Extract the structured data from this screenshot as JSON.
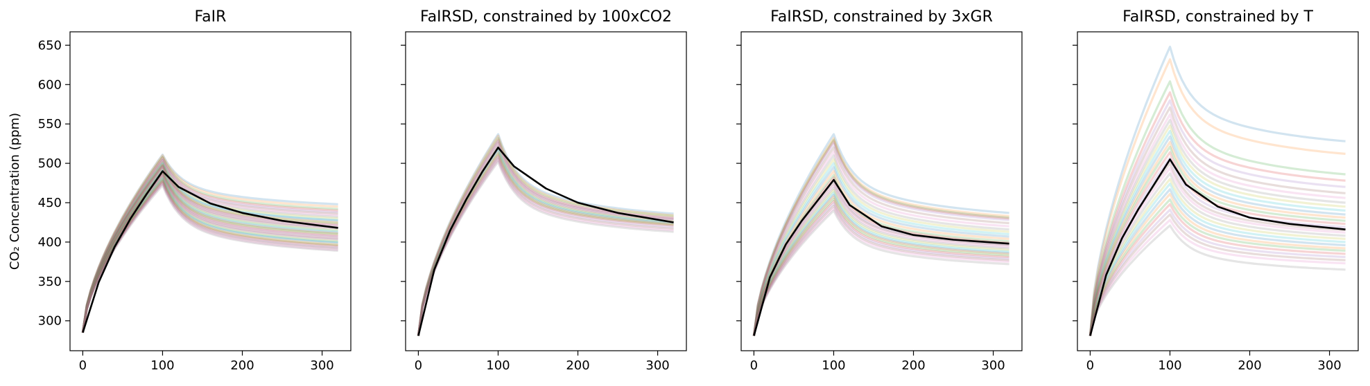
{
  "chart_data": [
    {
      "type": "line",
      "title": "FaIR",
      "ylabel": "CO₂ Concentration (ppm)",
      "xlim": [
        -16,
        336
      ],
      "ylim": [
        262,
        667
      ],
      "xticks": [
        0,
        100,
        200,
        300
      ],
      "yticks": [
        300,
        350,
        400,
        450,
        500,
        550,
        600,
        650
      ],
      "ytick_labels_shown": true,
      "colors": [
        "#1f77b4",
        "#ff7f0e",
        "#2ca02c",
        "#d62728",
        "#9467bd",
        "#8c564b",
        "#e377c2",
        "#7f7f7f",
        "#bcbd22",
        "#17becf"
      ],
      "ensemble_alpha": 0.2,
      "ensemble_start": 285,
      "ensemble_peaks": [
        511,
        510,
        508,
        507,
        505,
        504,
        503,
        502,
        501,
        500,
        499,
        498,
        497,
        497,
        496,
        495,
        494,
        493,
        492,
        491,
        490,
        489,
        488,
        487,
        486,
        485,
        484,
        483,
        482,
        481,
        480,
        479,
        478,
        477,
        476,
        475,
        474,
        472
      ],
      "ensemble_finals": [
        448,
        445,
        442,
        440,
        438,
        436,
        434,
        432,
        430,
        428,
        427,
        425,
        424,
        422,
        421,
        419,
        418,
        417,
        415,
        414,
        412,
        411,
        410,
        408,
        407,
        405,
        404,
        403,
        401,
        400,
        399,
        397,
        396,
        395,
        393,
        392,
        390,
        389
      ],
      "series": [
        {
          "name": "",
          "color": "#000000",
          "x": [
            0,
            20,
            40,
            60,
            80,
            100,
            120,
            160,
            200,
            250,
            320
          ],
          "y": [
            285,
            349,
            394,
            430,
            461,
            490,
            470,
            449,
            437,
            427,
            418
          ]
        }
      ]
    },
    {
      "type": "line",
      "title": "FaIRSD, constrained by 100xCO2",
      "ylabel": "",
      "xlim": [
        -16,
        336
      ],
      "ylim": [
        262,
        667
      ],
      "xticks": [
        0,
        100,
        200,
        300
      ],
      "yticks": [
        300,
        350,
        400,
        450,
        500,
        550,
        600,
        650
      ],
      "ytick_labels_shown": false,
      "colors": [
        "#1f77b4",
        "#ff7f0e",
        "#2ca02c",
        "#d62728",
        "#9467bd",
        "#8c564b",
        "#e377c2",
        "#7f7f7f",
        "#bcbd22",
        "#17becf"
      ],
      "ensemble_alpha": 0.2,
      "ensemble_start": 281,
      "ensemble_peaks": [
        537,
        535,
        532,
        530,
        528,
        526,
        524,
        522,
        520,
        518,
        516,
        514,
        512,
        510,
        508,
        506,
        504,
        502
      ],
      "ensemble_finals": [
        436,
        434,
        433,
        431,
        430,
        429,
        428,
        427,
        426,
        425,
        424,
        423,
        422,
        421,
        419,
        417,
        415,
        413
      ],
      "series": [
        {
          "name": "",
          "color": "#000000",
          "x": [
            0,
            20,
            40,
            60,
            80,
            100,
            120,
            160,
            200,
            250,
            320
          ],
          "y": [
            281,
            365,
            415,
            454,
            489,
            520,
            496,
            468,
            450,
            437,
            425
          ]
        }
      ]
    },
    {
      "type": "line",
      "title": "FaIRSD, constrained by 3xGR",
      "ylabel": "",
      "xlim": [
        -16,
        336
      ],
      "ylim": [
        262,
        667
      ],
      "xticks": [
        0,
        100,
        200,
        300
      ],
      "yticks": [
        300,
        350,
        400,
        450,
        500,
        550,
        600,
        650
      ],
      "ytick_labels_shown": false,
      "colors": [
        "#1f77b4",
        "#ff7f0e",
        "#2ca02c",
        "#d62728",
        "#9467bd",
        "#8c564b",
        "#e377c2",
        "#7f7f7f",
        "#bcbd22",
        "#17becf"
      ],
      "ensemble_alpha": 0.2,
      "ensemble_start": 281,
      "ensemble_peaks": [
        537,
        532,
        530,
        528,
        525,
        520,
        515,
        510,
        505,
        500,
        495,
        490,
        485,
        482,
        478,
        475,
        472,
        469,
        466,
        463,
        460,
        458,
        455,
        452,
        449,
        446,
        443,
        440
      ],
      "ensemble_finals": [
        437,
        433,
        431,
        430,
        428,
        424,
        420,
        416,
        413,
        410,
        407,
        404,
        401,
        399,
        397,
        396,
        394,
        392,
        390,
        388,
        386,
        385,
        383,
        381,
        379,
        377,
        375,
        372
      ],
      "series": [
        {
          "name": "",
          "color": "#000000",
          "x": [
            0,
            20,
            40,
            60,
            80,
            100,
            120,
            160,
            200,
            250,
            320
          ],
          "y": [
            281,
            355,
            397,
            427,
            453,
            479,
            447,
            420,
            409,
            403,
            398
          ]
        }
      ]
    },
    {
      "type": "line",
      "title": "FaIRSD, constrained by T",
      "ylabel": "",
      "xlim": [
        -16,
        336
      ],
      "ylim": [
        262,
        667
      ],
      "xticks": [
        0,
        100,
        200,
        300
      ],
      "yticks": [
        300,
        350,
        400,
        450,
        500,
        550,
        600,
        650
      ],
      "ytick_labels_shown": false,
      "colors": [
        "#1f77b4",
        "#ff7f0e",
        "#2ca02c",
        "#d62728",
        "#9467bd",
        "#8c564b",
        "#e377c2",
        "#7f7f7f",
        "#bcbd22",
        "#17becf"
      ],
      "ensemble_alpha": 0.2,
      "ensemble_start": 281,
      "ensemble_peaks": [
        648,
        632,
        604,
        590,
        580,
        571,
        562,
        555,
        548,
        541,
        534,
        527,
        521,
        514,
        507,
        500,
        494,
        487,
        480,
        474,
        467,
        461,
        454,
        448,
        441,
        435,
        428,
        421
      ],
      "ensemble_finals": [
        528,
        512,
        486,
        478,
        470,
        462,
        456,
        450,
        445,
        440,
        435,
        431,
        427,
        423,
        419,
        415,
        412,
        408,
        404,
        400,
        396,
        392,
        389,
        385,
        381,
        377,
        373,
        365
      ],
      "series": [
        {
          "name": "",
          "color": "#000000",
          "x": [
            0,
            20,
            40,
            60,
            80,
            100,
            120,
            160,
            200,
            250,
            320
          ],
          "y": [
            281,
            358,
            405,
            441,
            473,
            505,
            473,
            445,
            431,
            423,
            416
          ]
        }
      ]
    }
  ]
}
